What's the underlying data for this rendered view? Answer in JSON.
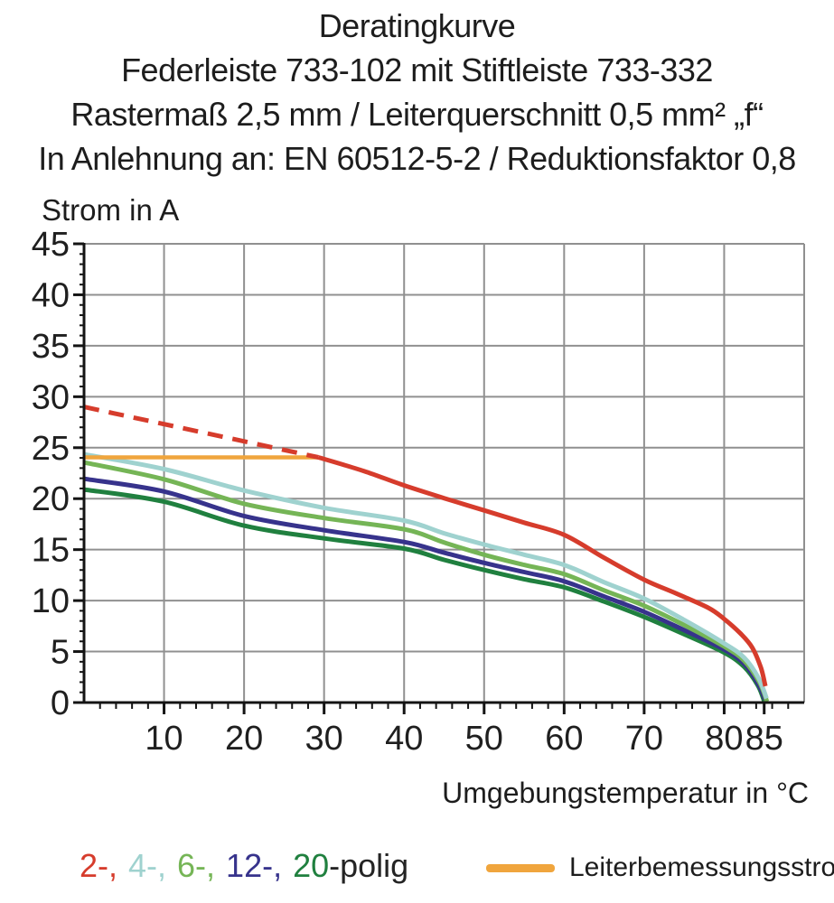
{
  "page": {
    "background": "#ffffff",
    "text_color": "#1f1f1f"
  },
  "chart_data": {
    "type": "line",
    "title": "Deratingkurve",
    "subtitle_lines": [
      "Federleiste 733-102 mit Stiftleiste 733-332",
      "Rastermaß 2,5 mm / Leiterquerschnitt 0,5 mm² „f“",
      "In Anlehnung an: EN 60512-5-2 / Reduktionsfaktor 0,8"
    ],
    "xlabel": "Umgebungstemperatur in °C",
    "ylabel": "Strom in A",
    "xlim": [
      0,
      90
    ],
    "ylim": [
      0,
      45
    ],
    "x_major_ticks": [
      10,
      20,
      30,
      40,
      50,
      60,
      70,
      80,
      85
    ],
    "x_minor_tick_step": 2,
    "x_gridlines": [
      10,
      20,
      30,
      40,
      50,
      60,
      70,
      80,
      90
    ],
    "y_major_ticks": [
      0,
      5,
      10,
      15,
      20,
      25,
      30,
      35,
      40,
      45
    ],
    "y_minor_tick_step": 1,
    "y_gridlines": [
      5,
      10,
      15,
      20,
      25,
      30,
      35,
      40,
      45
    ],
    "grid_color": "#909090",
    "axis_color": "#141414",
    "series": [
      {
        "name": "20-polig",
        "color": "#20803f",
        "width": 5,
        "points": [
          [
            0,
            20.9
          ],
          [
            10,
            19.7
          ],
          [
            20,
            17.35
          ],
          [
            30,
            16.1
          ],
          [
            40,
            15.1
          ],
          [
            45,
            14.0
          ],
          [
            50,
            13.0
          ],
          [
            55,
            12.1
          ],
          [
            60,
            11.3
          ],
          [
            65,
            9.9
          ],
          [
            70,
            8.4
          ],
          [
            75,
            6.7
          ],
          [
            80,
            4.9
          ],
          [
            82.5,
            3.5
          ],
          [
            84.2,
            1.7
          ],
          [
            85,
            0.15
          ]
        ]
      },
      {
        "name": "12-polig",
        "color": "#37338c",
        "width": 5,
        "points": [
          [
            0,
            21.95
          ],
          [
            10,
            20.7
          ],
          [
            20,
            18.3
          ],
          [
            30,
            16.9
          ],
          [
            40,
            15.75
          ],
          [
            45,
            14.7
          ],
          [
            50,
            13.7
          ],
          [
            55,
            12.8
          ],
          [
            60,
            11.9
          ],
          [
            65,
            10.4
          ],
          [
            70,
            8.9
          ],
          [
            75,
            7.1
          ],
          [
            80,
            5.2
          ],
          [
            82.5,
            3.8
          ],
          [
            84.2,
            1.9
          ],
          [
            85.1,
            0.3
          ]
        ]
      },
      {
        "name": "6-polig",
        "color": "#75b556",
        "width": 5,
        "points": [
          [
            0,
            23.55
          ],
          [
            10,
            21.9
          ],
          [
            20,
            19.5
          ],
          [
            30,
            18.1
          ],
          [
            40,
            17.0
          ],
          [
            45,
            15.7
          ],
          [
            50,
            14.5
          ],
          [
            55,
            13.5
          ],
          [
            60,
            12.6
          ],
          [
            65,
            11.0
          ],
          [
            70,
            9.5
          ],
          [
            75,
            7.6
          ],
          [
            80,
            5.5
          ],
          [
            82.5,
            4.1
          ],
          [
            84.4,
            2.0
          ],
          [
            85.35,
            0.1
          ]
        ]
      },
      {
        "name": "4-polig",
        "color": "#9fd2cf",
        "width": 5,
        "points": [
          [
            0,
            24.35
          ],
          [
            10,
            22.9
          ],
          [
            20,
            20.8
          ],
          [
            30,
            19.1
          ],
          [
            40,
            17.85
          ],
          [
            45,
            16.6
          ],
          [
            50,
            15.5
          ],
          [
            55,
            14.5
          ],
          [
            60,
            13.5
          ],
          [
            65,
            11.8
          ],
          [
            70,
            10.2
          ],
          [
            75,
            8.1
          ],
          [
            80,
            5.8
          ],
          [
            82.5,
            4.4
          ],
          [
            84.3,
            2.4
          ],
          [
            85.3,
            0.4
          ]
        ]
      },
      {
        "name": "Leiterbemessungsstrom",
        "color": "#f0a53d",
        "width": 4.5,
        "points": [
          [
            0,
            24.05
          ],
          [
            29.3,
            24.05
          ]
        ]
      },
      {
        "name": "2-polig (gestrichelter Bereich)",
        "color": "#d63c2c",
        "width": 5,
        "dash": "17 11",
        "points": [
          [
            0,
            29
          ],
          [
            29.3,
            24.05
          ]
        ]
      },
      {
        "name": "2-polig",
        "color": "#d63c2c",
        "width": 5,
        "points": [
          [
            29.3,
            24.05
          ],
          [
            35,
            22.7
          ],
          [
            40,
            21.3
          ],
          [
            45,
            20.05
          ],
          [
            50,
            18.85
          ],
          [
            55,
            17.65
          ],
          [
            60,
            16.45
          ],
          [
            65,
            14.2
          ],
          [
            70,
            12.05
          ],
          [
            74,
            10.7
          ],
          [
            78,
            9.3
          ],
          [
            80,
            8.2
          ],
          [
            82,
            6.8
          ],
          [
            83.5,
            5.4
          ],
          [
            84.6,
            3.4
          ],
          [
            85.15,
            1.6
          ]
        ]
      }
    ]
  },
  "legend": {
    "pole_items": [
      {
        "label": "2-,",
        "color": "#d63c2c"
      },
      {
        "label": "4-,",
        "color": "#9fd2cf"
      },
      {
        "label": "6-,",
        "color": "#75b556"
      },
      {
        "label": "12-,",
        "color": "#37338c"
      },
      {
        "label": "20",
        "color": "#20803f"
      }
    ],
    "suffix": "-polig",
    "line_item": {
      "label": "Leiterbemessungsstrom",
      "color": "#f0a53d"
    }
  }
}
